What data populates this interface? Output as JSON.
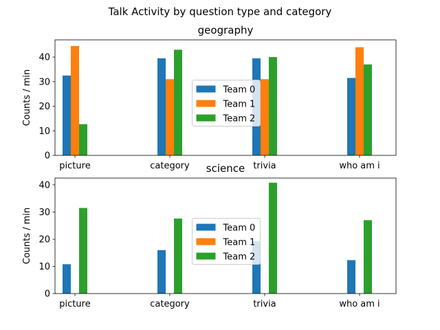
{
  "suptitle": "Talk Activity by question type and category",
  "colors": {
    "Team 0": "#1f77b4",
    "Team 1": "#ff7f0e",
    "Team 2": "#2ca02c"
  },
  "chart_data": [
    {
      "type": "bar",
      "title": "geography",
      "ylabel": "Counts / min",
      "xlabel": "",
      "categories": [
        "picture",
        "category",
        "trivia",
        "who am i"
      ],
      "ylim": [
        0,
        47
      ],
      "yticks": [
        0,
        10,
        20,
        30,
        40
      ],
      "legend": "center",
      "series": [
        {
          "name": "Team 0",
          "values": [
            32.5,
            39.5,
            39.5,
            31.5
          ]
        },
        {
          "name": "Team 1",
          "values": [
            44.5,
            31,
            31,
            44
          ]
        },
        {
          "name": "Team 2",
          "values": [
            12.7,
            43,
            40,
            37
          ]
        }
      ]
    },
    {
      "type": "bar",
      "title": "science",
      "ylabel": "Counts / min",
      "xlabel": "",
      "categories": [
        "picture",
        "category",
        "trivia",
        "who am i"
      ],
      "ylim": [
        0,
        42.5
      ],
      "yticks": [
        0,
        10,
        20,
        30,
        40
      ],
      "legend": "center",
      "series": [
        {
          "name": "Team 0",
          "values": [
            10.8,
            16,
            19.3,
            12.3
          ]
        },
        {
          "name": "Team 1",
          "values": [
            0,
            0,
            0,
            0
          ]
        },
        {
          "name": "Team 2",
          "values": [
            31.5,
            27.6,
            40.8,
            27
          ]
        }
      ]
    }
  ]
}
